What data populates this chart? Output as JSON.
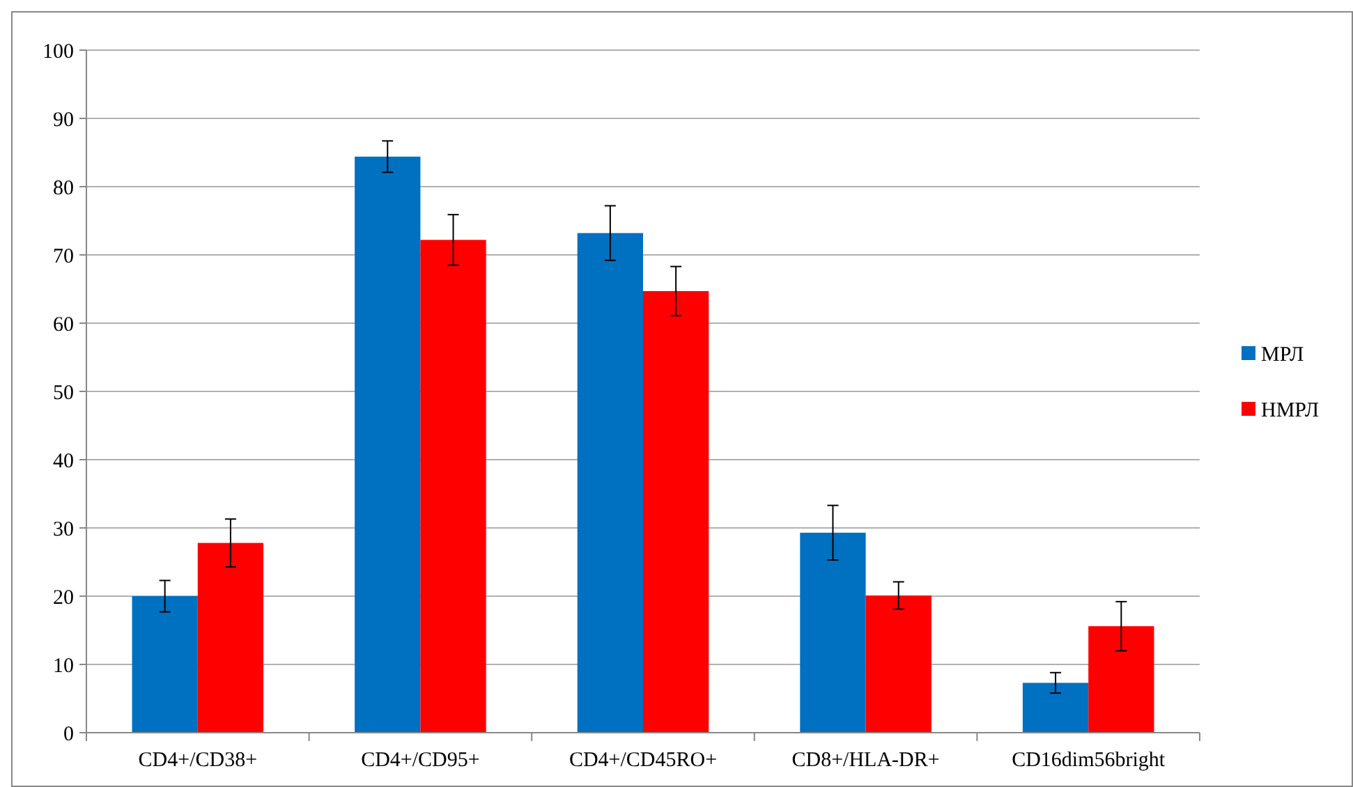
{
  "chart_data": {
    "type": "bar",
    "categories": [
      "CD4+/CD38+",
      "CD4+/CD95+",
      "CD4+/CD45RO+",
      "CD8+/HLA-DR+",
      "CD16dim56bright"
    ],
    "series": [
      {
        "name": "МРЛ",
        "color": "#0070c0",
        "values": [
          20,
          84.4,
          73.2,
          29.3,
          7.3
        ],
        "errors": [
          2.3,
          2.3,
          4,
          4,
          1.5
        ]
      },
      {
        "name": "НМРЛ",
        "color": "#ff0000",
        "values": [
          27.8,
          72.2,
          64.7,
          20.1,
          15.6
        ],
        "errors": [
          3.5,
          3.7,
          3.6,
          2,
          3.6
        ]
      }
    ],
    "ylim": [
      0,
      100
    ],
    "yticks": [
      0,
      10,
      20,
      30,
      40,
      50,
      60,
      70,
      80,
      90,
      100
    ],
    "grid": "y",
    "legend": "right"
  }
}
